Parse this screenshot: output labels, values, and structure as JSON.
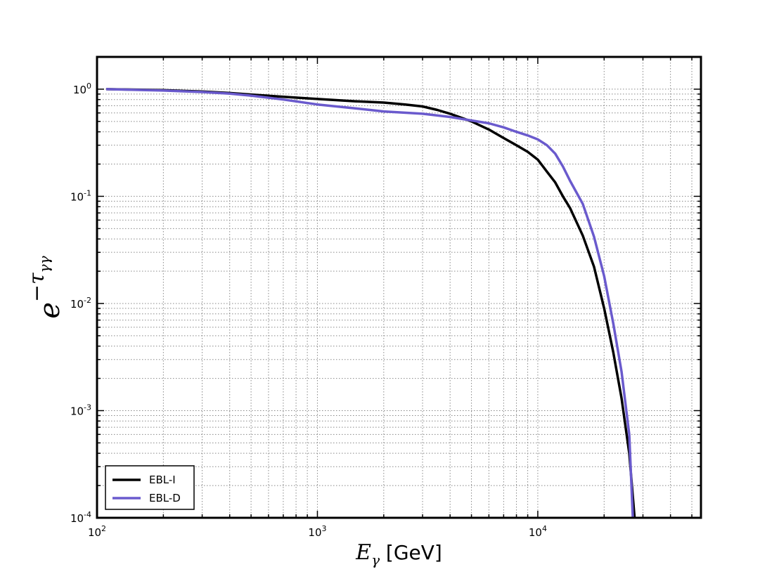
{
  "chart_data": {
    "type": "line",
    "title": "",
    "xlabel": {
      "base": "E",
      "sub": "γ",
      "unit": " [GeV]"
    },
    "ylabel": {
      "base": "e",
      "sup": "−τ",
      "supsub": "γγ"
    },
    "xscale": "log",
    "yscale": "log",
    "xlim": [
      100,
      55000
    ],
    "ylim": [
      0.0001,
      2
    ],
    "grid": true,
    "legend_position": "lower-left",
    "x_ticks": [
      {
        "base": "10",
        "exp": "2",
        "value": 100
      },
      {
        "base": "10",
        "exp": "3",
        "value": 1000
      },
      {
        "base": "10",
        "exp": "4",
        "value": 10000
      }
    ],
    "y_ticks": [
      {
        "base": "10",
        "exp": "0",
        "value": 1
      },
      {
        "base": "10",
        "exp": "-1",
        "value": 0.1
      },
      {
        "base": "10",
        "exp": "-2",
        "value": 0.01
      },
      {
        "base": "10",
        "exp": "-3",
        "value": 0.001
      },
      {
        "base": "10",
        "exp": "-4",
        "value": 0.0001
      }
    ],
    "series": [
      {
        "name": "EBL-I",
        "color": "#000000",
        "x": [
          110,
          200,
          300,
          400,
          500,
          700,
          1000,
          1500,
          2000,
          2500,
          3000,
          3500,
          4000,
          5000,
          6000,
          7000,
          8000,
          9000,
          10000,
          11000,
          12000,
          13000,
          14000,
          16000,
          18000,
          20000,
          22000,
          24000,
          26000,
          27500
        ],
        "y": [
          1.0,
          0.98,
          0.95,
          0.92,
          0.89,
          0.85,
          0.81,
          0.77,
          0.75,
          0.72,
          0.69,
          0.64,
          0.59,
          0.5,
          0.42,
          0.35,
          0.3,
          0.26,
          0.22,
          0.17,
          0.135,
          0.1,
          0.078,
          0.043,
          0.022,
          0.009,
          0.0035,
          0.0013,
          0.0004,
          0.0001
        ]
      },
      {
        "name": "EBL-D",
        "color": "#6a5acd",
        "x": [
          110,
          200,
          300,
          400,
          500,
          700,
          1000,
          1500,
          2000,
          3000,
          4000,
          5000,
          6000,
          7000,
          8000,
          9000,
          10000,
          11000,
          12000,
          13000,
          14000,
          16000,
          18000,
          20000,
          22000,
          24000,
          26000,
          27000
        ],
        "y": [
          1.0,
          0.97,
          0.94,
          0.91,
          0.87,
          0.8,
          0.72,
          0.66,
          0.62,
          0.59,
          0.55,
          0.51,
          0.48,
          0.44,
          0.4,
          0.37,
          0.34,
          0.3,
          0.25,
          0.19,
          0.14,
          0.085,
          0.042,
          0.018,
          0.0065,
          0.0023,
          0.0006,
          0.0001
        ]
      }
    ]
  }
}
